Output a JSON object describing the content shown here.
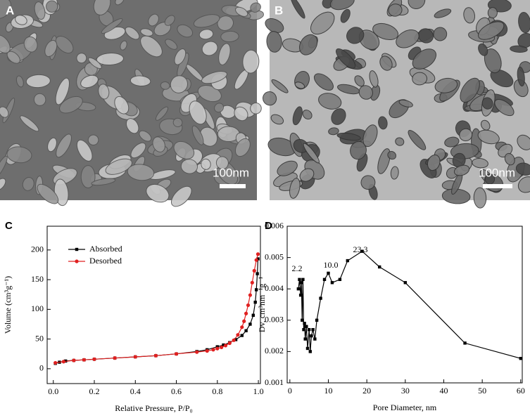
{
  "panels": [
    {
      "label": "A",
      "scale_bar": "100nm"
    },
    {
      "label": "B",
      "scale_bar": "100nm"
    }
  ],
  "chart_data": [
    {
      "type": "line",
      "label": "C",
      "xlabel": "Relative Pressure,  P/P₀",
      "ylabel": "Volume (cm³g⁻¹)",
      "xlim": [
        -0.03,
        1.01
      ],
      "ylim": [
        -25,
        240
      ],
      "xticks": [
        {
          "value": 0,
          "label": "0.0"
        },
        0.2,
        0.4,
        0.6,
        0.8,
        {
          "value": 1,
          "label": "1.0"
        }
      ],
      "yticks": [
        0,
        50,
        100,
        150,
        200
      ],
      "legend": "upper left",
      "series": [
        {
          "name": "Absorbed",
          "color": "#000000",
          "marker": "square",
          "x": [
            0.01,
            0.03,
            0.06,
            0.1,
            0.15,
            0.2,
            0.3,
            0.4,
            0.5,
            0.6,
            0.7,
            0.75,
            0.8,
            0.83,
            0.86,
            0.89,
            0.92,
            0.94,
            0.96,
            0.975,
            0.985,
            0.99,
            0.995,
            0.998
          ],
          "values": [
            9,
            11,
            13,
            14,
            15,
            16,
            18,
            20,
            22,
            25,
            29,
            32,
            37,
            40,
            44,
            49,
            56,
            64,
            75,
            90,
            112,
            133,
            160,
            185
          ]
        },
        {
          "name": "Desorbed",
          "color": "#e02020",
          "marker": "circle",
          "x": [
            0.998,
            0.99,
            0.98,
            0.97,
            0.96,
            0.95,
            0.94,
            0.93,
            0.92,
            0.9,
            0.88,
            0.86,
            0.84,
            0.82,
            0.8,
            0.78,
            0.75,
            0.7,
            0.6,
            0.5,
            0.4,
            0.3,
            0.2,
            0.15,
            0.1,
            0.05,
            0.01
          ],
          "values": [
            193,
            183,
            165,
            145,
            124,
            107,
            93,
            80,
            70,
            57,
            48,
            43,
            39,
            36,
            34,
            32,
            30,
            28,
            25,
            22,
            20,
            18,
            16,
            15,
            14,
            12,
            10
          ]
        }
      ]
    },
    {
      "type": "line",
      "label": "D",
      "xlabel": "Pore Diameter, nm",
      "ylabel": "Dv, cm³nm⁻¹g⁻¹",
      "xlim": [
        -0.7,
        60.4
      ],
      "ylim": [
        0.001,
        0.006
      ],
      "xticks": [
        0,
        10,
        20,
        30,
        40,
        50,
        60
      ],
      "yticks": [
        0.001,
        0.002,
        0.003,
        0.004,
        0.005,
        0.006
      ],
      "annotations": [
        "2.2",
        "10.0",
        "23.3"
      ],
      "series": [
        {
          "color": "#000000",
          "marker": "square",
          "x": [
            2.2,
            2.5,
            2.8,
            3.0,
            3.2,
            3.4,
            3.6,
            3.8,
            4.0,
            4.3,
            4.6,
            5.0,
            5.3,
            5.6,
            6.0,
            6.5,
            7,
            8,
            9,
            10,
            11,
            13,
            15,
            18.8,
            23.3,
            30,
            45.5,
            60
          ],
          "values": [
            0.004,
            0.0043,
            0.0038,
            0.0042,
            0.003,
            0.0043,
            0.0027,
            0.0029,
            0.0024,
            0.0028,
            0.0021,
            0.0027,
            0.002,
            0.0025,
            0.0027,
            0.0024,
            0.003,
            0.0037,
            0.0043,
            0.0045,
            0.0042,
            0.0043,
            0.0049,
            0.0052,
            0.0047,
            0.0042,
            0.00227,
            0.00178
          ]
        }
      ]
    }
  ]
}
